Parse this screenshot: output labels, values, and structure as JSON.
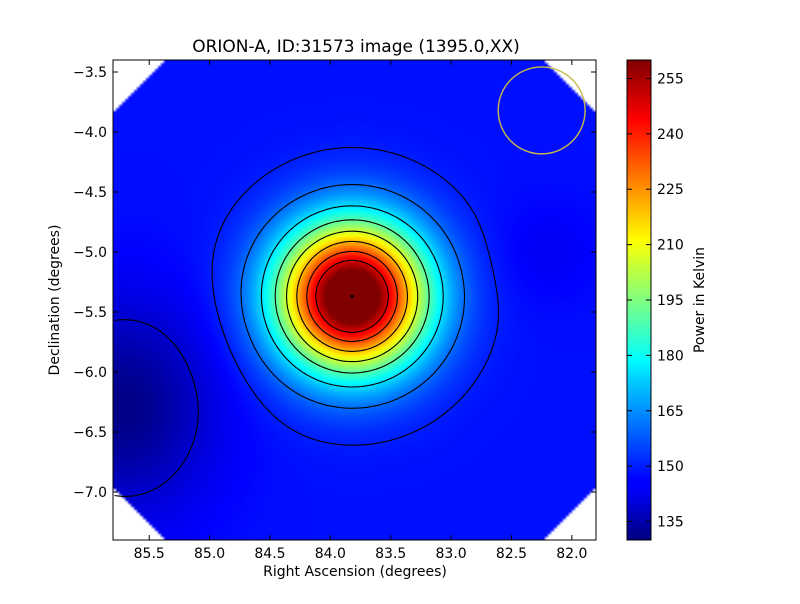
{
  "chart_data": {
    "type": "heatmap",
    "title": "ORION-A, ID:31573 image (1395.0,XX)",
    "xlabel": "Right Ascension (degrees)",
    "ylabel": "Declination (degrees)",
    "colorbar_label": "Power in Kelvin",
    "xlim": [
      85.8,
      81.8
    ],
    "ylim": [
      -7.4,
      -3.4
    ],
    "x_ticks": [
      85.5,
      85.0,
      84.5,
      84.0,
      83.5,
      83.0,
      82.5,
      82.0
    ],
    "x_tick_labels": [
      "85.5",
      "85.0",
      "84.5",
      "84.0",
      "83.5",
      "83.0",
      "82.5",
      "82.0"
    ],
    "y_ticks": [
      -3.5,
      -4.0,
      -4.5,
      -5.0,
      -5.5,
      -6.0,
      -6.5,
      -7.0
    ],
    "y_tick_labels": [
      "−3.5",
      "−4.0",
      "−4.5",
      "−5.0",
      "−5.5",
      "−6.0",
      "−6.5",
      "−7.0"
    ],
    "colorbar_range": [
      130,
      260
    ],
    "colorbar_ticks": [
      135,
      150,
      165,
      180,
      195,
      210,
      225,
      240,
      255
    ],
    "colormap": "jet",
    "peak": {
      "ra": 83.82,
      "dec": -5.37,
      "value": 258
    },
    "background_min": {
      "ra": 85.7,
      "dec": -6.3,
      "value": 132
    },
    "beam_circle": {
      "ra": 82.25,
      "dec": -3.82,
      "radius_deg": 0.36,
      "color": "#c8b94a"
    },
    "contour_color": "#000000",
    "grid": false
  }
}
